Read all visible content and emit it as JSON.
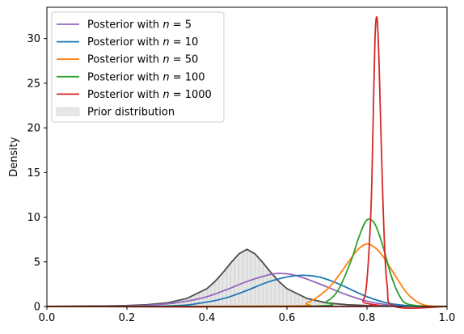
{
  "chart_data": {
    "type": "line",
    "title": "",
    "xlabel": "",
    "ylabel": "Density",
    "xlim": [
      0,
      1
    ],
    "ylim": [
      0,
      33.5
    ],
    "xticks": [
      "0.0",
      "0.2",
      "0.4",
      "0.6",
      "0.8",
      "1.0"
    ],
    "yticks": [
      "0",
      "5",
      "10",
      "15",
      "20",
      "25",
      "30"
    ],
    "grid": false,
    "legend_position": "top-left",
    "prior": {
      "name": "Prior distribution",
      "fill_color": "#e6e6e6",
      "line_color": "#4d4d4d",
      "x": [
        0.0,
        0.05,
        0.1,
        0.15,
        0.2,
        0.25,
        0.3,
        0.35,
        0.4,
        0.42,
        0.44,
        0.46,
        0.48,
        0.5,
        0.52,
        0.54,
        0.56,
        0.58,
        0.6,
        0.65,
        0.7,
        0.75,
        0.8,
        0.85,
        0.9,
        0.95,
        1.0
      ],
      "y": [
        0.02,
        0.03,
        0.05,
        0.07,
        0.11,
        0.2,
        0.4,
        0.9,
        2.0,
        2.8,
        3.8,
        4.9,
        5.9,
        6.4,
        5.9,
        4.9,
        3.8,
        2.8,
        2.0,
        0.9,
        0.4,
        0.2,
        0.11,
        0.07,
        0.05,
        0.03,
        0.02
      ]
    },
    "series": [
      {
        "name": "Posterior with n=5",
        "label_plain": "Posterior with ",
        "label_var": "n",
        "label_tail": " = 5",
        "color": "#9467bd",
        "x": [
          0.0,
          0.2,
          0.3,
          0.35,
          0.4,
          0.45,
          0.5,
          0.55,
          0.58,
          0.62,
          0.66,
          0.7,
          0.75,
          0.8,
          0.85,
          0.9,
          0.95,
          1.0
        ],
        "y": [
          0.0,
          0.05,
          0.3,
          0.6,
          1.1,
          1.9,
          2.8,
          3.5,
          3.7,
          3.5,
          2.9,
          2.2,
          1.3,
          0.6,
          0.2,
          0.05,
          0.01,
          0.0
        ]
      },
      {
        "name": "Posterior with n=10",
        "label_plain": "Posterior with ",
        "label_var": "n",
        "label_tail": " = 10",
        "color": "#1f77b4",
        "x": [
          0.0,
          0.3,
          0.4,
          0.45,
          0.5,
          0.55,
          0.6,
          0.64,
          0.68,
          0.72,
          0.76,
          0.8,
          0.85,
          0.9,
          0.95,
          1.0
        ],
        "y": [
          0.0,
          0.05,
          0.5,
          1.0,
          1.8,
          2.7,
          3.3,
          3.5,
          3.3,
          2.7,
          1.9,
          1.1,
          0.4,
          0.1,
          0.01,
          0.0
        ]
      },
      {
        "name": "Posterior with n=50",
        "label_plain": "Posterior with ",
        "label_var": "n",
        "label_tail": " = 50",
        "color": "#ff7f0e",
        "x": [
          0.0,
          0.6,
          0.65,
          0.7,
          0.73,
          0.76,
          0.78,
          0.8,
          0.82,
          0.84,
          0.87,
          0.9,
          0.93,
          0.96,
          1.0
        ],
        "y": [
          0.0,
          0.05,
          0.4,
          1.9,
          3.5,
          5.4,
          6.5,
          7.0,
          6.6,
          5.6,
          3.5,
          1.5,
          0.4,
          0.05,
          0.0
        ]
      },
      {
        "name": "Posterior with n=100",
        "label_plain": "Posterior with ",
        "label_var": "n",
        "label_tail": " = 100",
        "color": "#2ca02c",
        "x": [
          0.0,
          0.65,
          0.7,
          0.73,
          0.76,
          0.78,
          0.8,
          0.82,
          0.84,
          0.86,
          0.88,
          0.9,
          0.95,
          1.0
        ],
        "y": [
          0.0,
          0.03,
          0.6,
          2.0,
          5.1,
          7.8,
          9.7,
          9.2,
          6.7,
          3.5,
          1.3,
          0.3,
          0.0,
          0.0
        ]
      },
      {
        "name": "Posterior with n=1000",
        "label_plain": "Posterior with ",
        "label_var": "n",
        "label_tail": " = 1000",
        "color": "#d62728",
        "x": [
          0.0,
          0.77,
          0.79,
          0.8,
          0.81,
          0.815,
          0.82,
          0.825,
          0.83,
          0.84,
          0.85,
          0.87,
          1.0
        ],
        "y": [
          0.0,
          0.0,
          0.6,
          3.0,
          11.0,
          20.0,
          30.0,
          32.3,
          27.5,
          11.5,
          2.5,
          0.0,
          0.0
        ]
      }
    ]
  }
}
